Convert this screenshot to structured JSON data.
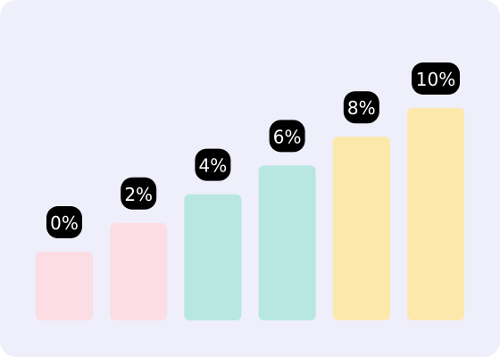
{
  "chart_data": {
    "type": "bar",
    "categories": [
      "",
      "",
      "",
      "",
      "",
      ""
    ],
    "values": [
      0,
      2,
      4,
      6,
      8,
      10
    ],
    "data_labels": [
      "0%",
      "2%",
      "4%",
      "6%",
      "8%",
      "10%"
    ],
    "colors": [
      "#fcdde3",
      "#fcdde3",
      "#b8e7e1",
      "#b8e7e1",
      "#fde8ab",
      "#fde8ab"
    ],
    "label_bg_color": "#000000",
    "label_text_color": "#ffffff",
    "background_color": "#eeeffa",
    "title": "",
    "xlabel": "",
    "ylabel": "",
    "grid": false,
    "axes_visible": false
  }
}
